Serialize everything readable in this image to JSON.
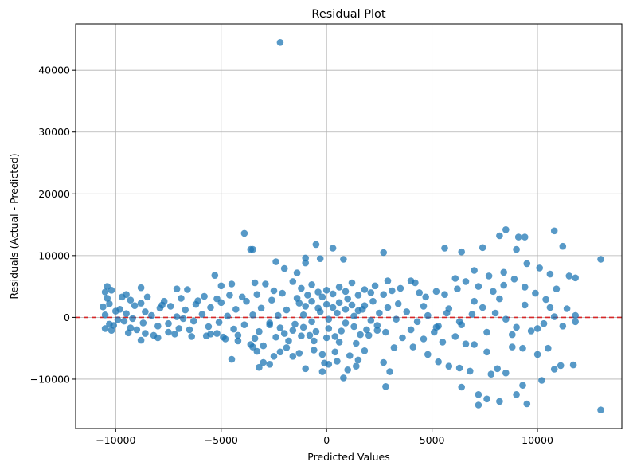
{
  "chart_data": {
    "type": "scatter",
    "title": "Residual Plot",
    "xlabel": "Predicted Values",
    "ylabel": "Residuals (Actual - Predicted)",
    "xlim": [
      -11900,
      14000
    ],
    "ylim": [
      -18000,
      47500
    ],
    "xticks": [
      -10000,
      -5000,
      0,
      5000,
      10000
    ],
    "yticks": [
      -10000,
      0,
      10000,
      20000,
      30000,
      40000
    ],
    "xtick_labels": [
      "−10000",
      "−5000",
      "0",
      "5000",
      "10000"
    ],
    "ytick_labels": [
      "−10000",
      "0",
      "10000",
      "20000",
      "30000",
      "40000"
    ],
    "grid": true,
    "reference_line": {
      "y": 0,
      "color": "#d62728",
      "style": "dashed"
    },
    "point_color": "#1f77b4",
    "points": [
      [
        -2200,
        44500
      ],
      [
        13000,
        9400
      ],
      [
        13000,
        -15000
      ],
      [
        10800,
        14000
      ],
      [
        8500,
        14200
      ],
      [
        9100,
        13000
      ],
      [
        9400,
        13000
      ],
      [
        8200,
        13200
      ],
      [
        11200,
        11500
      ],
      [
        7400,
        11300
      ],
      [
        9000,
        11000
      ],
      [
        -3900,
        13600
      ],
      [
        -3600,
        11000
      ],
      [
        -3500,
        11000
      ],
      [
        -500,
        11800
      ],
      [
        300,
        11200
      ],
      [
        5600,
        11200
      ],
      [
        2700,
        10500
      ],
      [
        6400,
        10600
      ],
      [
        -2400,
        9000
      ],
      [
        -1000,
        9600
      ],
      [
        -1000,
        8800
      ],
      [
        -300,
        9500
      ],
      [
        800,
        9400
      ],
      [
        -1400,
        7200
      ],
      [
        -2000,
        7900
      ],
      [
        9500,
        8700
      ],
      [
        10100,
        8000
      ],
      [
        10600,
        7000
      ],
      [
        11500,
        6700
      ],
      [
        11800,
        6400
      ],
      [
        7000,
        7600
      ],
      [
        7700,
        6700
      ],
      [
        8400,
        7300
      ],
      [
        6100,
        6300
      ],
      [
        -5000,
        5100
      ],
      [
        -4500,
        5400
      ],
      [
        -3400,
        5600
      ],
      [
        -5300,
        6800
      ],
      [
        -6600,
        4500
      ],
      [
        -7100,
        4600
      ],
      [
        -8800,
        4800
      ],
      [
        -9500,
        3700
      ],
      [
        -10400,
        5000
      ],
      [
        -10500,
        4100
      ],
      [
        -10200,
        4400
      ],
      [
        -10400,
        3100
      ],
      [
        -10600,
        1700
      ],
      [
        -10500,
        400
      ],
      [
        -10300,
        -1100
      ],
      [
        -10500,
        -1800
      ],
      [
        -10200,
        -2100
      ],
      [
        -9600,
        -600
      ],
      [
        -9000,
        -2000
      ],
      [
        -8800,
        -3700
      ],
      [
        -8200,
        -2900
      ],
      [
        -7500,
        -2400
      ],
      [
        -6500,
        -2000
      ],
      [
        -5700,
        -3000
      ],
      [
        -5200,
        -2600
      ],
      [
        -4800,
        -3500
      ],
      [
        -4200,
        -3800
      ],
      [
        -3600,
        -4400
      ],
      [
        -3300,
        -5500
      ],
      [
        -3000,
        -7300
      ],
      [
        -4500,
        -6800
      ],
      [
        -2700,
        -7600
      ],
      [
        -3200,
        -8100
      ],
      [
        -2200,
        -5600
      ],
      [
        -1600,
        -6300
      ],
      [
        -1000,
        -8300
      ],
      [
        -200,
        -8800
      ],
      [
        100,
        -7600
      ],
      [
        800,
        -9800
      ],
      [
        1000,
        -8500
      ],
      [
        1500,
        -6900
      ],
      [
        2700,
        -7300
      ],
      [
        2800,
        -11200
      ],
      [
        3000,
        -8800
      ],
      [
        4800,
        -6000
      ],
      [
        5300,
        -7200
      ],
      [
        5800,
        -7900
      ],
      [
        6300,
        -8200
      ],
      [
        6400,
        -11300
      ],
      [
        6800,
        -8700
      ],
      [
        7200,
        -12500
      ],
      [
        7200,
        -14200
      ],
      [
        7600,
        -13200
      ],
      [
        7800,
        -9200
      ],
      [
        8100,
        -8300
      ],
      [
        8200,
        -13600
      ],
      [
        8500,
        -9000
      ],
      [
        9000,
        -12500
      ],
      [
        9300,
        -11000
      ],
      [
        9500,
        -14000
      ],
      [
        10200,
        -10200
      ],
      [
        10800,
        -8400
      ],
      [
        11100,
        -7800
      ],
      [
        11700,
        -7700
      ],
      [
        10000,
        -6000
      ],
      [
        10500,
        -5000
      ],
      [
        9300,
        -5000
      ],
      [
        8800,
        -4800
      ],
      [
        7600,
        -5600
      ],
      [
        7000,
        -4400
      ],
      [
        6600,
        -4300
      ],
      [
        6100,
        -3100
      ],
      [
        5500,
        -4000
      ],
      [
        5100,
        -2400
      ],
      [
        4600,
        -3500
      ],
      [
        4100,
        -4800
      ],
      [
        3600,
        -3300
      ],
      [
        3200,
        -4900
      ],
      [
        2400,
        -2100
      ],
      [
        2000,
        -2900
      ],
      [
        1400,
        -4200
      ],
      [
        600,
        -4000
      ],
      [
        0,
        -3300
      ],
      [
        -600,
        -3800
      ],
      [
        -1200,
        -3000
      ],
      [
        -1800,
        -3800
      ],
      [
        -2400,
        -3200
      ],
      [
        -3000,
        -4600
      ],
      [
        -3500,
        -4800
      ],
      [
        4200,
        5600
      ],
      [
        4700,
        3300
      ],
      [
        5200,
        4200
      ],
      [
        5600,
        3700
      ],
      [
        6200,
        4600
      ],
      [
        6600,
        5800
      ],
      [
        7200,
        5000
      ],
      [
        7900,
        4200
      ],
      [
        8400,
        5200
      ],
      [
        8900,
        6200
      ],
      [
        9400,
        4900
      ],
      [
        9900,
        3900
      ],
      [
        10400,
        2900
      ],
      [
        10900,
        4600
      ],
      [
        11400,
        1400
      ],
      [
        11800,
        -700
      ],
      [
        11800,
        300
      ],
      [
        10800,
        100
      ],
      [
        10300,
        -1000
      ],
      [
        9700,
        -2200
      ],
      [
        9000,
        -1600
      ],
      [
        8500,
        -300
      ],
      [
        8000,
        700
      ],
      [
        7400,
        1600
      ],
      [
        6900,
        500
      ],
      [
        6300,
        -700
      ],
      [
        5700,
        700
      ],
      [
        5300,
        -1400
      ],
      [
        4800,
        300
      ],
      [
        4300,
        -700
      ],
      [
        3800,
        900
      ],
      [
        3300,
        -300
      ],
      [
        2900,
        1600
      ],
      [
        2500,
        700
      ],
      [
        2100,
        -500
      ],
      [
        1700,
        1300
      ],
      [
        1300,
        200
      ],
      [
        900,
        -900
      ],
      [
        500,
        700
      ],
      [
        100,
        -300
      ],
      [
        -300,
        900
      ],
      [
        -700,
        -700
      ],
      [
        -1100,
        400
      ],
      [
        -1500,
        -1100
      ],
      [
        -1900,
        1200
      ],
      [
        -2300,
        300
      ],
      [
        -2700,
        -900
      ],
      [
        -3100,
        1500
      ],
      [
        -3500,
        400
      ],
      [
        -3900,
        -1200
      ],
      [
        -4300,
        1300
      ],
      [
        -4700,
        200
      ],
      [
        -5100,
        -800
      ],
      [
        -5500,
        1600
      ],
      [
        -5900,
        500
      ],
      [
        -6300,
        -600
      ],
      [
        -6700,
        1200
      ],
      [
        -7100,
        100
      ],
      [
        -7500,
        -1000
      ],
      [
        -7900,
        1500
      ],
      [
        -8300,
        300
      ],
      [
        -8700,
        -900
      ],
      [
        -9100,
        1900
      ],
      [
        -9500,
        600
      ],
      [
        -9900,
        -400
      ],
      [
        -10300,
        2200
      ],
      [
        -9800,
        1300
      ],
      [
        -9200,
        -200
      ],
      [
        -8600,
        900
      ],
      [
        -8000,
        -1400
      ],
      [
        -7400,
        1800
      ],
      [
        -6800,
        -200
      ],
      [
        -6200,
        2100
      ],
      [
        -5600,
        -1500
      ],
      [
        -5000,
        2400
      ],
      [
        -4400,
        -1900
      ],
      [
        -3800,
        2600
      ],
      [
        -3200,
        -2300
      ],
      [
        -2600,
        2800
      ],
      [
        -2000,
        -2600
      ],
      [
        -1400,
        3100
      ],
      [
        -800,
        -2900
      ],
      [
        -200,
        3300
      ],
      [
        400,
        -3100
      ],
      [
        1000,
        3000
      ],
      [
        1600,
        -2800
      ],
      [
        2200,
        2600
      ],
      [
        2800,
        -2400
      ],
      [
        3400,
        2200
      ],
      [
        4000,
        -2000
      ],
      [
        4600,
        1800
      ],
      [
        5200,
        -1600
      ],
      [
        5800,
        1400
      ],
      [
        6400,
        -1200
      ],
      [
        7000,
        2600
      ],
      [
        7600,
        -2400
      ],
      [
        8200,
        3000
      ],
      [
        8800,
        -2800
      ],
      [
        9400,
        2000
      ],
      [
        10000,
        -1800
      ],
      [
        10600,
        1600
      ],
      [
        11200,
        -1400
      ],
      [
        -1600,
        5800
      ],
      [
        -1200,
        4700
      ],
      [
        -700,
        5300
      ],
      [
        0,
        4400
      ],
      [
        600,
        4900
      ],
      [
        1200,
        5600
      ],
      [
        1800,
        4500
      ],
      [
        2300,
        5100
      ],
      [
        2900,
        5900
      ],
      [
        3500,
        4700
      ],
      [
        4000,
        5900
      ],
      [
        -2900,
        5400
      ],
      [
        -2500,
        4300
      ],
      [
        -3300,
        3700
      ],
      [
        -2100,
        3900
      ],
      [
        -900,
        3600
      ],
      [
        -400,
        4100
      ],
      [
        300,
        3800
      ],
      [
        900,
        4200
      ],
      [
        1500,
        3600
      ],
      [
        2100,
        4000
      ],
      [
        2700,
        3700
      ],
      [
        3100,
        4300
      ],
      [
        4400,
        4000
      ],
      [
        -600,
        -5300
      ],
      [
        -200,
        -6000
      ],
      [
        400,
        -5600
      ],
      [
        1100,
        -6200
      ],
      [
        1800,
        -5400
      ],
      [
        -1300,
        -5800
      ],
      [
        -1900,
        -4900
      ],
      [
        -2500,
        -6300
      ],
      [
        500,
        -7100
      ],
      [
        -100,
        -7400
      ],
      [
        1400,
        -7900
      ],
      [
        -1300,
        2300
      ],
      [
        -1000,
        1800
      ],
      [
        -700,
        2600
      ],
      [
        -400,
        1500
      ],
      [
        0,
        2100
      ],
      [
        300,
        1600
      ],
      [
        600,
        2400
      ],
      [
        900,
        1300
      ],
      [
        1200,
        2000
      ],
      [
        1500,
        1100
      ],
      [
        1800,
        1900
      ],
      [
        -1600,
        -2100
      ],
      [
        -1100,
        -1600
      ],
      [
        -500,
        -2300
      ],
      [
        100,
        -1800
      ],
      [
        700,
        -2200
      ],
      [
        1300,
        -1500
      ],
      [
        1900,
        -2000
      ],
      [
        2400,
        -1300
      ],
      [
        -2200,
        -1700
      ],
      [
        -2700,
        -1200
      ],
      [
        -6900,
        3100
      ],
      [
        -7700,
        2600
      ],
      [
        -8500,
        3300
      ],
      [
        -9300,
        2800
      ],
      [
        -6400,
        -3100
      ],
      [
        -7200,
        -2700
      ],
      [
        -8000,
        -3300
      ],
      [
        -9400,
        -2500
      ],
      [
        -10100,
        -1300
      ],
      [
        -5800,
        3400
      ],
      [
        -5200,
        3000
      ],
      [
        -4600,
        3600
      ],
      [
        -4000,
        3300
      ],
      [
        -3400,
        -3400
      ],
      [
        -4200,
        -2900
      ],
      [
        -4900,
        -3200
      ],
      [
        -5500,
        -2700
      ],
      [
        -6100,
        2700
      ],
      [
        -8800,
        2300
      ],
      [
        -9700,
        3300
      ],
      [
        -10000,
        1000
      ],
      [
        -9300,
        -1700
      ],
      [
        -8600,
        -2600
      ],
      [
        -7800,
        2000
      ],
      [
        -7000,
        -1800
      ]
    ]
  }
}
